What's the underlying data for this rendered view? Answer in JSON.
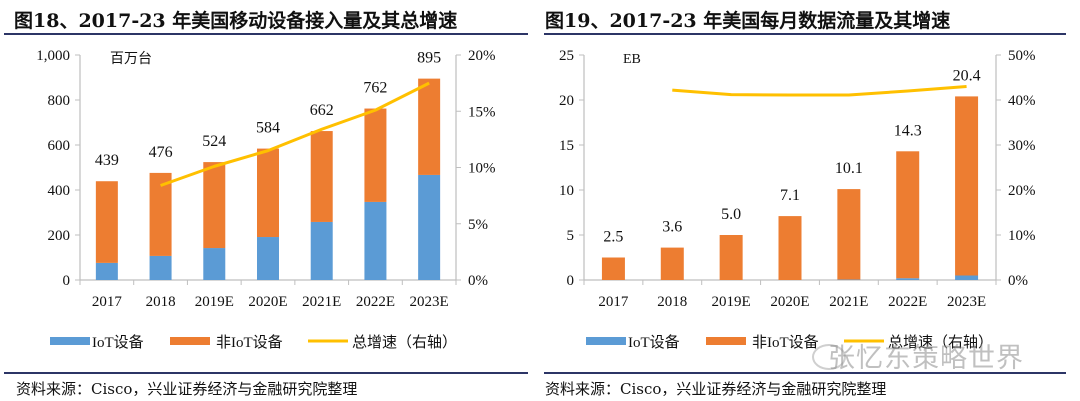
{
  "figures": [
    {
      "title": "图18、2017-23 年美国移动设备接入量及其总增速",
      "source": "资料来源：Cisco，兴业证券经济与金融研究院整理"
    },
    {
      "title": "图19、2017-23 年美国每月数据流量及其增速",
      "source": "资料来源：Cisco，兴业证券经济与金融研究院整理"
    }
  ],
  "watermark": "张忆东策略世界",
  "colors": {
    "iot": "#5b9bd5",
    "non_iot": "#ed7d31",
    "growth": "#ffc000",
    "axis": "#bfbfbf",
    "rule": "#2c3566"
  },
  "chart_data": [
    {
      "type": "bar",
      "stacked": true,
      "title": "图18、2017-23 年美国移动设备接入量及其总增速",
      "unit_label": "百万台",
      "categories": [
        "2017",
        "2018",
        "2019E",
        "2020E",
        "2021E",
        "2022E",
        "2023E"
      ],
      "series": [
        {
          "name": "IoT设备",
          "kind": "bar",
          "axis": "left",
          "values": [
            76,
            107,
            142,
            191,
            258,
            347,
            467
          ]
        },
        {
          "name": "非IoT设备",
          "kind": "bar",
          "axis": "left",
          "values": [
            363,
            369,
            382,
            393,
            404,
            415,
            428
          ]
        },
        {
          "name": "总增速（右轴）",
          "kind": "line",
          "axis": "right",
          "values": [
            null,
            8.4,
            10.1,
            11.5,
            13.4,
            15.1,
            17.5
          ]
        }
      ],
      "totals": [
        439,
        476,
        524,
        584,
        662,
        762,
        895
      ],
      "total_labels": [
        "439",
        "476",
        "524",
        "584",
        "662",
        "762",
        "895"
      ],
      "ylim": [
        0,
        1000
      ],
      "yticks": [
        0,
        200,
        400,
        600,
        800,
        1000
      ],
      "ytick_labels": [
        "0",
        "200",
        "400",
        "600",
        "800",
        "1,000"
      ],
      "y2lim": [
        0,
        20
      ],
      "y2ticks": [
        0,
        5,
        10,
        15,
        20
      ],
      "y2tick_labels": [
        "0%",
        "5%",
        "10%",
        "15%",
        "20%"
      ],
      "legend": [
        "IoT设备",
        "非IoT设备",
        "总增速（右轴）"
      ],
      "legend_position": "bottom",
      "grid": false
    },
    {
      "type": "bar",
      "stacked": true,
      "title": "图19、2017-23 年美国每月数据流量及其增速",
      "unit_label": "EB",
      "categories": [
        "2017",
        "2018",
        "2019E",
        "2020E",
        "2021E",
        "2022E",
        "2023E"
      ],
      "series": [
        {
          "name": "IoT设备",
          "kind": "bar",
          "axis": "left",
          "values": [
            0,
            0,
            0,
            0,
            0.05,
            0.2,
            0.5
          ]
        },
        {
          "name": "非IoT设备",
          "kind": "bar",
          "axis": "left",
          "values": [
            2.5,
            3.6,
            5.0,
            7.1,
            10.05,
            14.1,
            19.9
          ]
        },
        {
          "name": "总增速（右轴）",
          "kind": "line",
          "axis": "right",
          "values": [
            null,
            42.2,
            41.2,
            41.1,
            41.1,
            42.0,
            43.0
          ]
        }
      ],
      "totals": [
        2.5,
        3.6,
        5.0,
        7.1,
        10.1,
        14.3,
        20.4
      ],
      "total_labels": [
        "2.5",
        "3.6",
        "5.0",
        "7.1",
        "10.1",
        "14.3",
        "20.4"
      ],
      "ylim": [
        0,
        25
      ],
      "yticks": [
        0,
        5,
        10,
        15,
        20,
        25
      ],
      "ytick_labels": [
        "0",
        "5",
        "10",
        "15",
        "20",
        "25"
      ],
      "y2lim": [
        0,
        50
      ],
      "y2ticks": [
        0,
        10,
        20,
        30,
        40,
        50
      ],
      "y2tick_labels": [
        "0%",
        "10%",
        "20%",
        "30%",
        "40%",
        "50%"
      ],
      "legend": [
        "IoT设备",
        "非IoT设备",
        "总增速（右轴）"
      ],
      "legend_position": "bottom",
      "grid": false
    }
  ]
}
